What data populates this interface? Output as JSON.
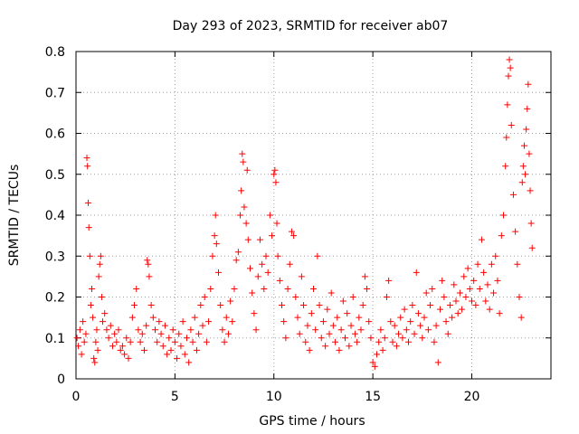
{
  "chart_data": {
    "type": "scatter",
    "title": "Day 293 of 2023, SRMTID for receiver ab07",
    "xlabel": "GPS time / hours",
    "ylabel": "SRMTID / TECUs",
    "xlim": [
      0,
      24
    ],
    "ylim": [
      0,
      0.8
    ],
    "x_ticks": [
      0,
      5,
      10,
      15,
      20
    ],
    "y_ticks": [
      0,
      0.1,
      0.2,
      0.3,
      0.4,
      0.5,
      0.6,
      0.7,
      0.8
    ],
    "x_tick_labels": [
      "0",
      "5",
      "10",
      "15",
      "20"
    ],
    "y_tick_labels": [
      "0",
      "0.1",
      "0.2",
      "0.3",
      "0.4",
      "0.5",
      "0.6",
      "0.7",
      "0.8"
    ],
    "grid": true,
    "marker": "+",
    "marker_color": "#ff0000",
    "series": [
      {
        "name": "SRMTID",
        "points": [
          [
            0.05,
            0.1
          ],
          [
            0.12,
            0.08
          ],
          [
            0.2,
            0.12
          ],
          [
            0.28,
            0.06
          ],
          [
            0.35,
            0.14
          ],
          [
            0.42,
            0.09
          ],
          [
            0.5,
            0.11
          ],
          [
            0.55,
            0.54
          ],
          [
            0.58,
            0.52
          ],
          [
            0.62,
            0.43
          ],
          [
            0.65,
            0.37
          ],
          [
            0.7,
            0.3
          ],
          [
            0.75,
            0.18
          ],
          [
            0.8,
            0.22
          ],
          [
            0.85,
            0.15
          ],
          [
            0.9,
            0.05
          ],
          [
            0.95,
            0.04
          ],
          [
            1.0,
            0.09
          ],
          [
            1.05,
            0.12
          ],
          [
            1.1,
            0.07
          ],
          [
            1.15,
            0.25
          ],
          [
            1.2,
            0.28
          ],
          [
            1.25,
            0.3
          ],
          [
            1.3,
            0.2
          ],
          [
            1.35,
            0.14
          ],
          [
            1.45,
            0.16
          ],
          [
            1.55,
            0.12
          ],
          [
            1.65,
            0.1
          ],
          [
            1.75,
            0.13
          ],
          [
            1.85,
            0.08
          ],
          [
            1.95,
            0.11
          ],
          [
            2.05,
            0.09
          ],
          [
            2.15,
            0.12
          ],
          [
            2.25,
            0.07
          ],
          [
            2.35,
            0.08
          ],
          [
            2.45,
            0.06
          ],
          [
            2.55,
            0.1
          ],
          [
            2.65,
            0.05
          ],
          [
            2.75,
            0.09
          ],
          [
            2.85,
            0.15
          ],
          [
            2.95,
            0.18
          ],
          [
            3.05,
            0.22
          ],
          [
            3.15,
            0.12
          ],
          [
            3.25,
            0.09
          ],
          [
            3.35,
            0.11
          ],
          [
            3.45,
            0.07
          ],
          [
            3.55,
            0.13
          ],
          [
            3.6,
            0.29
          ],
          [
            3.65,
            0.28
          ],
          [
            3.7,
            0.25
          ],
          [
            3.8,
            0.18
          ],
          [
            3.9,
            0.15
          ],
          [
            4.0,
            0.12
          ],
          [
            4.1,
            0.09
          ],
          [
            4.2,
            0.14
          ],
          [
            4.3,
            0.11
          ],
          [
            4.4,
            0.08
          ],
          [
            4.5,
            0.13
          ],
          [
            4.6,
            0.06
          ],
          [
            4.7,
            0.1
          ],
          [
            4.8,
            0.07
          ],
          [
            4.9,
            0.12
          ],
          [
            5.0,
            0.09
          ],
          [
            5.1,
            0.05
          ],
          [
            5.2,
            0.11
          ],
          [
            5.3,
            0.08
          ],
          [
            5.4,
            0.14
          ],
          [
            5.5,
            0.06
          ],
          [
            5.6,
            0.1
          ],
          [
            5.7,
            0.04
          ],
          [
            5.8,
            0.12
          ],
          [
            5.9,
            0.09
          ],
          [
            6.0,
            0.15
          ],
          [
            6.1,
            0.07
          ],
          [
            6.2,
            0.11
          ],
          [
            6.3,
            0.18
          ],
          [
            6.4,
            0.13
          ],
          [
            6.5,
            0.2
          ],
          [
            6.6,
            0.09
          ],
          [
            6.7,
            0.14
          ],
          [
            6.8,
            0.22
          ],
          [
            6.9,
            0.3
          ],
          [
            7.0,
            0.35
          ],
          [
            7.05,
            0.4
          ],
          [
            7.1,
            0.33
          ],
          [
            7.2,
            0.26
          ],
          [
            7.3,
            0.18
          ],
          [
            7.4,
            0.12
          ],
          [
            7.5,
            0.09
          ],
          [
            7.6,
            0.15
          ],
          [
            7.7,
            0.11
          ],
          [
            7.8,
            0.19
          ],
          [
            7.9,
            0.14
          ],
          [
            8.0,
            0.22
          ],
          [
            8.1,
            0.29
          ],
          [
            8.2,
            0.31
          ],
          [
            8.3,
            0.4
          ],
          [
            8.35,
            0.46
          ],
          [
            8.4,
            0.55
          ],
          [
            8.45,
            0.53
          ],
          [
            8.5,
            0.42
          ],
          [
            8.6,
            0.38
          ],
          [
            8.65,
            0.51
          ],
          [
            8.7,
            0.34
          ],
          [
            8.8,
            0.27
          ],
          [
            8.9,
            0.21
          ],
          [
            9.0,
            0.16
          ],
          [
            9.1,
            0.12
          ],
          [
            9.2,
            0.25
          ],
          [
            9.3,
            0.34
          ],
          [
            9.4,
            0.28
          ],
          [
            9.5,
            0.22
          ],
          [
            9.6,
            0.3
          ],
          [
            9.7,
            0.26
          ],
          [
            9.8,
            0.4
          ],
          [
            9.9,
            0.35
          ],
          [
            10.0,
            0.5
          ],
          [
            10.05,
            0.51
          ],
          [
            10.1,
            0.48
          ],
          [
            10.15,
            0.38
          ],
          [
            10.2,
            0.3
          ],
          [
            10.3,
            0.24
          ],
          [
            10.4,
            0.18
          ],
          [
            10.5,
            0.14
          ],
          [
            10.6,
            0.1
          ],
          [
            10.7,
            0.22
          ],
          [
            10.8,
            0.28
          ],
          [
            10.9,
            0.36
          ],
          [
            11.0,
            0.35
          ],
          [
            11.1,
            0.2
          ],
          [
            11.2,
            0.15
          ],
          [
            11.3,
            0.11
          ],
          [
            11.4,
            0.25
          ],
          [
            11.5,
            0.18
          ],
          [
            11.6,
            0.09
          ],
          [
            11.7,
            0.13
          ],
          [
            11.8,
            0.07
          ],
          [
            11.9,
            0.16
          ],
          [
            12.0,
            0.22
          ],
          [
            12.1,
            0.12
          ],
          [
            12.2,
            0.3
          ],
          [
            12.3,
            0.18
          ],
          [
            12.4,
            0.1
          ],
          [
            12.5,
            0.14
          ],
          [
            12.6,
            0.08
          ],
          [
            12.7,
            0.17
          ],
          [
            12.8,
            0.11
          ],
          [
            12.9,
            0.21
          ],
          [
            13.0,
            0.13
          ],
          [
            13.1,
            0.09
          ],
          [
            13.2,
            0.15
          ],
          [
            13.3,
            0.07
          ],
          [
            13.4,
            0.12
          ],
          [
            13.5,
            0.19
          ],
          [
            13.6,
            0.1
          ],
          [
            13.7,
            0.16
          ],
          [
            13.8,
            0.08
          ],
          [
            13.9,
            0.13
          ],
          [
            14.0,
            0.2
          ],
          [
            14.1,
            0.11
          ],
          [
            14.2,
            0.09
          ],
          [
            14.3,
            0.15
          ],
          [
            14.4,
            0.12
          ],
          [
            14.5,
            0.18
          ],
          [
            14.6,
            0.25
          ],
          [
            14.7,
            0.22
          ],
          [
            14.8,
            0.14
          ],
          [
            14.9,
            0.1
          ],
          [
            15.0,
            0.04
          ],
          [
            15.1,
            0.03
          ],
          [
            15.2,
            0.06
          ],
          [
            15.3,
            0.09
          ],
          [
            15.4,
            0.12
          ],
          [
            15.5,
            0.07
          ],
          [
            15.6,
            0.1
          ],
          [
            15.7,
            0.2
          ],
          [
            15.8,
            0.24
          ],
          [
            15.9,
            0.14
          ],
          [
            16.0,
            0.09
          ],
          [
            16.1,
            0.13
          ],
          [
            16.2,
            0.08
          ],
          [
            16.3,
            0.11
          ],
          [
            16.4,
            0.15
          ],
          [
            16.5,
            0.1
          ],
          [
            16.6,
            0.17
          ],
          [
            16.7,
            0.12
          ],
          [
            16.8,
            0.09
          ],
          [
            16.9,
            0.14
          ],
          [
            17.0,
            0.18
          ],
          [
            17.1,
            0.11
          ],
          [
            17.2,
            0.26
          ],
          [
            17.3,
            0.16
          ],
          [
            17.4,
            0.13
          ],
          [
            17.5,
            0.1
          ],
          [
            17.6,
            0.15
          ],
          [
            17.7,
            0.21
          ],
          [
            17.8,
            0.12
          ],
          [
            17.9,
            0.18
          ],
          [
            18.0,
            0.22
          ],
          [
            18.1,
            0.09
          ],
          [
            18.2,
            0.13
          ],
          [
            18.3,
            0.04
          ],
          [
            18.4,
            0.17
          ],
          [
            18.5,
            0.24
          ],
          [
            18.6,
            0.2
          ],
          [
            18.7,
            0.14
          ],
          [
            18.8,
            0.11
          ],
          [
            18.9,
            0.18
          ],
          [
            19.0,
            0.15
          ],
          [
            19.1,
            0.23
          ],
          [
            19.2,
            0.19
          ],
          [
            19.3,
            0.16
          ],
          [
            19.4,
            0.21
          ],
          [
            19.5,
            0.17
          ],
          [
            19.6,
            0.25
          ],
          [
            19.7,
            0.2
          ],
          [
            19.8,
            0.27
          ],
          [
            19.9,
            0.22
          ],
          [
            20.0,
            0.19
          ],
          [
            20.1,
            0.24
          ],
          [
            20.2,
            0.18
          ],
          [
            20.3,
            0.28
          ],
          [
            20.4,
            0.22
          ],
          [
            20.5,
            0.34
          ],
          [
            20.6,
            0.26
          ],
          [
            20.7,
            0.19
          ],
          [
            20.8,
            0.23
          ],
          [
            20.9,
            0.17
          ],
          [
            21.0,
            0.28
          ],
          [
            21.1,
            0.21
          ],
          [
            21.2,
            0.3
          ],
          [
            21.3,
            0.24
          ],
          [
            21.4,
            0.16
          ],
          [
            21.5,
            0.35
          ],
          [
            21.6,
            0.4
          ],
          [
            21.7,
            0.52
          ],
          [
            21.75,
            0.59
          ],
          [
            21.8,
            0.67
          ],
          [
            21.85,
            0.74
          ],
          [
            21.9,
            0.78
          ],
          [
            21.95,
            0.76
          ],
          [
            22.0,
            0.62
          ],
          [
            22.1,
            0.45
          ],
          [
            22.2,
            0.36
          ],
          [
            22.3,
            0.28
          ],
          [
            22.4,
            0.2
          ],
          [
            22.5,
            0.15
          ],
          [
            22.55,
            0.48
          ],
          [
            22.6,
            0.52
          ],
          [
            22.65,
            0.57
          ],
          [
            22.7,
            0.5
          ],
          [
            22.75,
            0.61
          ],
          [
            22.8,
            0.66
          ],
          [
            22.85,
            0.72
          ],
          [
            22.9,
            0.55
          ],
          [
            22.95,
            0.46
          ],
          [
            23.0,
            0.38
          ],
          [
            23.05,
            0.32
          ]
        ]
      }
    ]
  }
}
